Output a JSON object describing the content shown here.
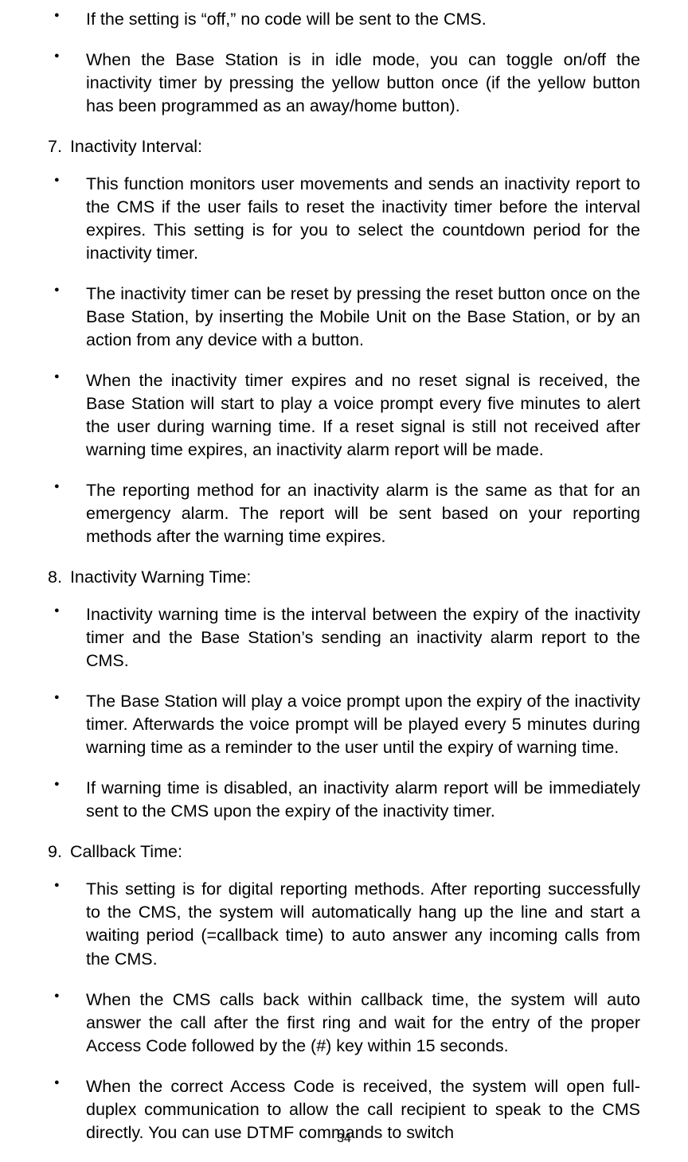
{
  "section_initial": {
    "bullets": [
      "If the setting is “off,” no code will be sent to the CMS.",
      "When the Base Station is in idle mode, you can toggle on/off the inactivity timer by pressing the yellow button once (if the yellow button has been programmed as an away/home button)."
    ]
  },
  "section7": {
    "number": "7.",
    "title": "Inactivity Interval:",
    "bullets": [
      "This function monitors user movements and sends an inactivity report to the CMS if the user fails to reset the inactivity timer before the interval expires. This setting is for you to select the countdown period for the inactivity timer.",
      "The inactivity timer can be reset by pressing the reset button once on the Base Station, by inserting the Mobile Unit on the Base Station, or by an action from any device with a button.",
      "When the inactivity timer expires and no reset signal is received, the Base Station will start to play a voice prompt every five minutes to alert the user during warning time. If a reset signal is still not received after warning time expires, an inactivity alarm report will be made.",
      "The reporting method for an inactivity alarm is the same as that for an emergency alarm. The report will be sent based on your reporting methods after the warning time expires."
    ]
  },
  "section8": {
    "number": "8.",
    "title": "Inactivity Warning Time:",
    "bullets": [
      "Inactivity warning time is the interval between the expiry of the inactivity timer and the Base Station’s sending an inactivity alarm report to the CMS.",
      "The Base Station will play a voice prompt upon the expiry of the inactivity timer. Afterwards the voice prompt will be played every 5 minutes during warning time as a reminder to the user until the expiry of warning time.",
      "If warning time is disabled, an inactivity alarm report will be immediately sent to the CMS upon the expiry of the inactivity timer."
    ]
  },
  "section9": {
    "number": "9.",
    "title": "Callback Time:",
    "bullets": [
      "This setting is for digital reporting methods. After reporting successfully to the CMS, the system will automatically hang up the line and start a waiting period (=callback time) to auto answer any incoming calls from the CMS.",
      "When the CMS calls back within callback time, the system will auto answer the call after the first ring and wait for the entry of the proper Access Code followed by the (#) key within 15 seconds.",
      "When the correct Access Code is received, the system will open full-duplex communication to allow the call recipient to speak to the CMS directly. You can use DTMF commands to switch"
    ]
  },
  "page_number": "34"
}
